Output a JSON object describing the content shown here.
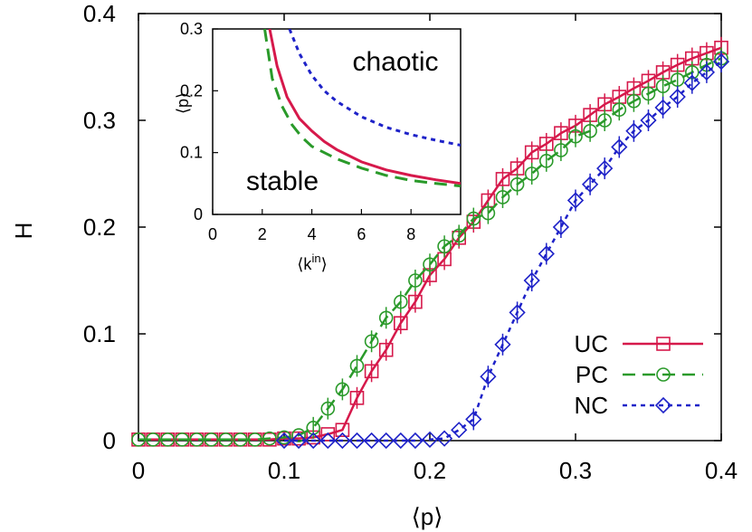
{
  "chart_data": [
    {
      "type": "line",
      "xlabel": "⟨p⟩",
      "ylabel": "H",
      "xlim": [
        0,
        0.4
      ],
      "ylim": [
        0,
        0.4
      ],
      "xticks": [
        "0",
        "0.1",
        "0.2",
        "0.3",
        "0.4"
      ],
      "yticks": [
        "0",
        "0.1",
        "0.2",
        "0.3",
        "0.4"
      ],
      "legend_position": "bottom-right",
      "series": [
        {
          "name": "UC",
          "color": "#d6194b",
          "marker": "square",
          "line": "solid",
          "x": [
            0,
            0.01,
            0.02,
            0.03,
            0.04,
            0.05,
            0.06,
            0.07,
            0.08,
            0.09,
            0.1,
            0.11,
            0.12,
            0.13,
            0.14,
            0.15,
            0.16,
            0.17,
            0.18,
            0.19,
            0.2,
            0.21,
            0.22,
            0.23,
            0.24,
            0.25,
            0.26,
            0.27,
            0.28,
            0.29,
            0.3,
            0.31,
            0.32,
            0.33,
            0.34,
            0.35,
            0.36,
            0.37,
            0.38,
            0.39,
            0.4
          ],
          "y": [
            0.001,
            0.001,
            0.001,
            0.001,
            0.001,
            0.001,
            0.001,
            0.001,
            0.001,
            0.001,
            0.002,
            0.002,
            0.003,
            0.006,
            0.01,
            0.04,
            0.065,
            0.085,
            0.11,
            0.13,
            0.155,
            0.17,
            0.19,
            0.205,
            0.225,
            0.245,
            0.255,
            0.27,
            0.278,
            0.288,
            0.295,
            0.305,
            0.315,
            0.322,
            0.33,
            0.337,
            0.345,
            0.352,
            0.358,
            0.363,
            0.368
          ]
        },
        {
          "name": "PC",
          "color": "#2a9a2a",
          "marker": "circle",
          "line": "dashed",
          "x": [
            0,
            0.01,
            0.02,
            0.03,
            0.04,
            0.05,
            0.06,
            0.07,
            0.08,
            0.09,
            0.1,
            0.11,
            0.12,
            0.13,
            0.14,
            0.15,
            0.16,
            0.17,
            0.18,
            0.19,
            0.2,
            0.21,
            0.22,
            0.23,
            0.24,
            0.25,
            0.26,
            0.27,
            0.28,
            0.29,
            0.3,
            0.31,
            0.32,
            0.33,
            0.34,
            0.35,
            0.36,
            0.37,
            0.38,
            0.39,
            0.4
          ],
          "y": [
            0.001,
            0.001,
            0.001,
            0.001,
            0.001,
            0.001,
            0.001,
            0.001,
            0.001,
            0.002,
            0.003,
            0.005,
            0.012,
            0.03,
            0.048,
            0.07,
            0.093,
            0.115,
            0.13,
            0.15,
            0.165,
            0.182,
            0.192,
            0.208,
            0.213,
            0.228,
            0.24,
            0.25,
            0.262,
            0.272,
            0.285,
            0.29,
            0.3,
            0.31,
            0.318,
            0.325,
            0.332,
            0.338,
            0.345,
            0.352,
            0.358
          ]
        },
        {
          "name": "NC",
          "color": "#1e22c8",
          "marker": "diamond",
          "line": "dotted",
          "x": [
            0.1,
            0.11,
            0.12,
            0.13,
            0.14,
            0.15,
            0.16,
            0.17,
            0.18,
            0.19,
            0.2,
            0.21,
            0.22,
            0.23,
            0.24,
            0.25,
            0.26,
            0.27,
            0.28,
            0.29,
            0.3,
            0.31,
            0.32,
            0.33,
            0.34,
            0.35,
            0.36,
            0.37,
            0.38,
            0.39,
            0.4
          ],
          "y": [
            0,
            0,
            0,
            0,
            0,
            0,
            0,
            0,
            0,
            0,
            0.001,
            0.002,
            0.01,
            0.02,
            0.06,
            0.09,
            0.12,
            0.15,
            0.175,
            0.2,
            0.225,
            0.24,
            0.255,
            0.275,
            0.29,
            0.3,
            0.312,
            0.322,
            0.335,
            0.345,
            0.355
          ]
        }
      ]
    },
    {
      "type": "line",
      "xlabel": "⟨k",
      "xlabel_sup": "in",
      "xlabel_close": "⟩",
      "ylabel": "⟨p⟩",
      "xlim": [
        0,
        10
      ],
      "ylim": [
        0,
        0.3
      ],
      "xticks": [
        "0",
        "2",
        "4",
        "6",
        "8"
      ],
      "yticks": [
        "0",
        "0.1",
        "0.2",
        "0.3"
      ],
      "annotations": [
        "chaotic",
        "stable"
      ],
      "series": [
        {
          "color": "#d6194b",
          "line": "solid",
          "x": [
            2.3,
            2.6,
            3,
            3.5,
            4,
            4.5,
            5,
            6,
            7,
            8,
            9,
            10
          ],
          "y": [
            0.3,
            0.24,
            0.19,
            0.155,
            0.135,
            0.118,
            0.105,
            0.085,
            0.072,
            0.063,
            0.056,
            0.05
          ]
        },
        {
          "color": "#2a9a2a",
          "line": "dashed",
          "x": [
            2.1,
            2.4,
            2.8,
            3.2,
            3.6,
            4,
            5,
            6,
            7,
            8,
            9,
            10
          ],
          "y": [
            0.3,
            0.22,
            0.175,
            0.145,
            0.125,
            0.11,
            0.09,
            0.075,
            0.063,
            0.055,
            0.05,
            0.046
          ]
        },
        {
          "color": "#1e22c8",
          "line": "dotted",
          "x": [
            3.1,
            3.5,
            4,
            4.5,
            5,
            6,
            7,
            8,
            9,
            10
          ],
          "y": [
            0.3,
            0.26,
            0.225,
            0.2,
            0.183,
            0.158,
            0.141,
            0.129,
            0.12,
            0.112
          ]
        }
      ]
    }
  ]
}
